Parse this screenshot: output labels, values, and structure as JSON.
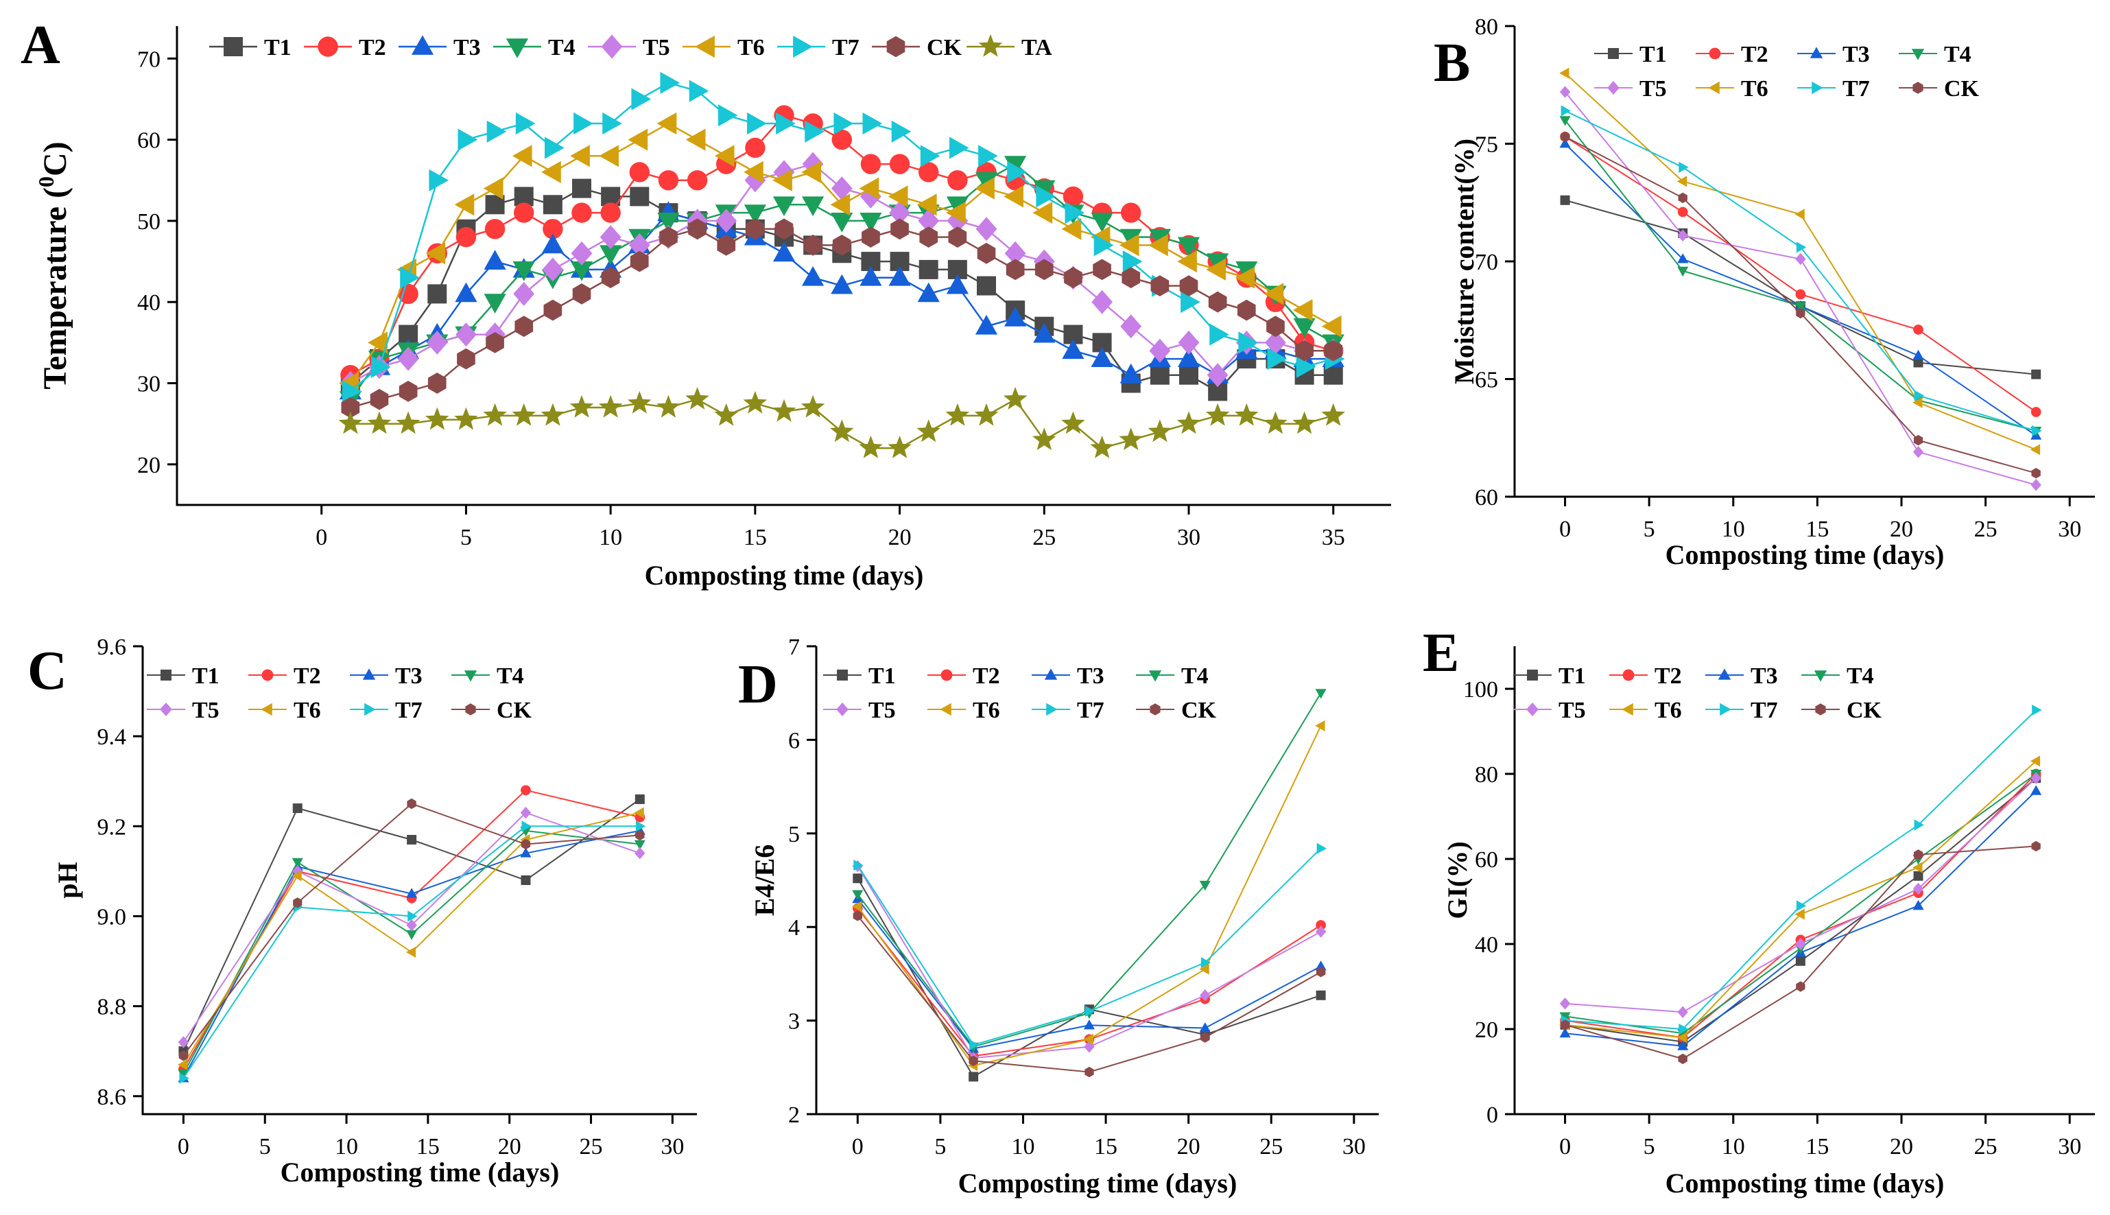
{
  "series_styles": {
    "T1": {
      "color": "#4a4a4a",
      "marker": "square"
    },
    "T2": {
      "color": "#ff3a3a",
      "marker": "circle"
    },
    "T3": {
      "color": "#1560d8",
      "marker": "triangle-up"
    },
    "T4": {
      "color": "#1b9e5a",
      "marker": "triangle-down"
    },
    "T5": {
      "color": "#c77ee6",
      "marker": "diamond"
    },
    "T6": {
      "color": "#d4a00e",
      "marker": "triangle-left"
    },
    "T7": {
      "color": "#19c6d6",
      "marker": "triangle-right"
    },
    "CK": {
      "color": "#8b4a4a",
      "marker": "hexagon"
    },
    "TA": {
      "color": "#8c8c1a",
      "marker": "star"
    }
  },
  "chart_data": [
    {
      "id": "A",
      "type": "line",
      "panel_label": "A",
      "title": "",
      "xlabel": "Composting time (days)",
      "ylabel": "Temperature (⁰C)",
      "ylabel_main": "Temperature (",
      "ylabel_sup": "0",
      "ylabel_end": "C)",
      "xlim": [
        -5,
        37
      ],
      "ylim": [
        15,
        74
      ],
      "xticks": [
        0,
        5,
        10,
        15,
        20,
        25,
        30,
        35
      ],
      "yticks": [
        20,
        30,
        40,
        50,
        60,
        70
      ],
      "legend": {
        "position": "top",
        "entries": [
          "T1",
          "T2",
          "T3",
          "T4",
          "T5",
          "T6",
          "T7",
          "CK",
          "TA"
        ]
      },
      "x": [
        1,
        2,
        3,
        4,
        5,
        6,
        7,
        8,
        9,
        10,
        11,
        12,
        13,
        14,
        15,
        16,
        17,
        18,
        19,
        20,
        21,
        22,
        23,
        24,
        25,
        26,
        27,
        28,
        29,
        30,
        31,
        32,
        33,
        34,
        35
      ],
      "series": [
        {
          "name": "T1",
          "values": [
            30,
            33,
            36,
            41,
            49,
            52,
            53,
            52,
            54,
            53,
            53,
            51,
            50,
            49,
            49,
            48,
            47,
            46,
            45,
            45,
            44,
            44,
            42,
            39,
            37,
            36,
            35,
            30,
            31,
            31,
            29,
            33,
            33,
            31,
            31
          ]
        },
        {
          "name": "T2",
          "values": [
            31,
            33,
            41,
            46,
            48,
            49,
            51,
            49,
            51,
            51,
            56,
            55,
            55,
            57,
            59,
            63,
            62,
            60,
            57,
            57,
            56,
            55,
            56,
            55,
            54,
            53,
            51,
            51,
            48,
            47,
            45,
            43,
            40,
            35,
            34
          ]
        },
        {
          "name": "T3",
          "values": [
            29,
            32,
            34,
            36,
            41,
            45,
            44,
            47,
            44,
            44,
            47,
            51,
            50,
            49,
            48,
            46,
            43,
            42,
            43,
            43,
            41,
            42,
            37,
            38,
            36,
            34,
            33,
            31,
            33,
            33,
            31,
            34,
            34,
            33,
            33
          ]
        },
        {
          "name": "T4",
          "values": [
            28,
            33,
            34,
            35,
            36,
            40,
            44,
            43,
            44,
            46,
            48,
            50,
            50,
            51,
            51,
            52,
            52,
            50,
            50,
            51,
            51,
            52,
            55,
            57,
            54,
            51,
            50,
            48,
            48,
            47,
            45,
            44,
            41,
            37,
            35
          ]
        },
        {
          "name": "T5",
          "values": [
            30,
            32,
            33,
            35,
            36,
            36,
            41,
            44,
            46,
            48,
            47,
            48,
            50,
            50,
            55,
            56,
            57,
            54,
            53,
            51,
            50,
            50,
            49,
            46,
            45,
            43,
            40,
            37,
            34,
            35,
            31,
            35,
            35,
            34,
            34
          ]
        },
        {
          "name": "T6",
          "values": [
            30,
            35,
            44,
            46,
            52,
            54,
            58,
            56,
            58,
            58,
            60,
            62,
            60,
            58,
            56,
            55,
            56,
            52,
            54,
            53,
            52,
            51,
            54,
            53,
            51,
            49,
            48,
            47,
            47,
            45,
            44,
            43,
            41,
            39,
            37
          ]
        },
        {
          "name": "T7",
          "values": [
            29,
            32,
            43,
            55,
            60,
            61,
            62,
            59,
            62,
            62,
            65,
            67,
            66,
            63,
            62,
            62,
            61,
            62,
            62,
            61,
            58,
            59,
            58,
            56,
            53,
            51,
            47,
            45,
            42,
            40,
            36,
            35,
            33,
            32,
            33
          ]
        },
        {
          "name": "CK",
          "values": [
            27,
            28,
            29,
            30,
            33,
            35,
            37,
            39,
            41,
            43,
            45,
            48,
            49,
            47,
            49,
            49,
            47,
            47,
            48,
            49,
            48,
            48,
            46,
            44,
            44,
            43,
            44,
            43,
            42,
            42,
            40,
            39,
            37,
            34,
            34
          ]
        },
        {
          "name": "TA",
          "values": [
            25,
            25,
            25,
            25.5,
            25.5,
            26,
            26,
            26,
            27,
            27,
            27.5,
            27,
            28,
            26,
            27.5,
            26.5,
            27,
            24,
            22,
            22,
            24,
            26,
            26,
            28,
            23,
            25,
            22,
            23,
            24,
            25,
            26,
            26,
            25,
            25,
            26
          ]
        }
      ]
    },
    {
      "id": "B",
      "type": "line",
      "panel_label": "B",
      "title": "",
      "xlabel": "Composting time (days)",
      "ylabel": "Moisture content(%)",
      "xlim": [
        -3,
        31.5
      ],
      "ylim": [
        60,
        80
      ],
      "xticks": [
        0,
        5,
        10,
        15,
        20,
        25,
        30
      ],
      "yticks": [
        60,
        65,
        70,
        75,
        80
      ],
      "legend": {
        "position": "top",
        "entries": [
          "T1",
          "T2",
          "T3",
          "T4",
          "T5",
          "T6",
          "T7",
          "CK"
        ]
      },
      "x": [
        0,
        7,
        14,
        21,
        28
      ],
      "series": [
        {
          "name": "T1",
          "values": [
            72.6,
            71.2,
            68.1,
            65.7,
            65.2
          ]
        },
        {
          "name": "T2",
          "values": [
            75.3,
            72.1,
            68.6,
            67.1,
            63.6
          ]
        },
        {
          "name": "T3",
          "values": [
            75.0,
            70.1,
            68.1,
            66.0,
            62.6
          ]
        },
        {
          "name": "T4",
          "values": [
            76.0,
            69.6,
            68.1,
            64.1,
            62.8
          ]
        },
        {
          "name": "T5",
          "values": [
            77.2,
            71.1,
            70.1,
            61.9,
            60.5
          ]
        },
        {
          "name": "T6",
          "values": [
            78.0,
            73.4,
            72.0,
            64.0,
            62.0
          ]
        },
        {
          "name": "T7",
          "values": [
            76.4,
            74.0,
            70.6,
            64.3,
            62.8
          ]
        },
        {
          "name": "CK",
          "values": [
            75.3,
            72.7,
            67.8,
            62.4,
            61.0
          ]
        }
      ]
    },
    {
      "id": "C",
      "type": "line",
      "panel_label": "C",
      "title": "",
      "xlabel": "Composting time (days)",
      "ylabel": "pH",
      "xlim": [
        -2.5,
        31.5
      ],
      "ylim": [
        8.56,
        9.6
      ],
      "xticks": [
        0,
        5,
        10,
        15,
        20,
        25,
        30
      ],
      "yticks": [
        8.6,
        8.8,
        9.0,
        9.2,
        9.4,
        9.6
      ],
      "ytick_labels": [
        "8.6",
        "8.8",
        "9.0",
        "9.2",
        "9.4",
        "9.6"
      ],
      "legend": {
        "position": "top",
        "entries": [
          "T1",
          "T2",
          "T3",
          "T4",
          "T5",
          "T6",
          "T7",
          "CK"
        ]
      },
      "x": [
        0,
        7,
        14,
        21,
        28
      ],
      "series": [
        {
          "name": "T1",
          "values": [
            8.7,
            9.24,
            9.17,
            9.08,
            9.26
          ]
        },
        {
          "name": "T2",
          "values": [
            8.66,
            9.1,
            9.04,
            9.28,
            9.22
          ]
        },
        {
          "name": "T3",
          "values": [
            8.64,
            9.11,
            9.05,
            9.14,
            9.19
          ]
        },
        {
          "name": "T4",
          "values": [
            8.65,
            9.12,
            8.96,
            9.19,
            9.16
          ]
        },
        {
          "name": "T5",
          "values": [
            8.72,
            9.1,
            8.98,
            9.23,
            9.14
          ]
        },
        {
          "name": "T6",
          "values": [
            8.67,
            9.09,
            8.92,
            9.17,
            9.23
          ]
        },
        {
          "name": "T7",
          "values": [
            8.64,
            9.02,
            9.0,
            9.2,
            9.2
          ]
        },
        {
          "name": "CK",
          "values": [
            8.69,
            9.03,
            9.25,
            9.16,
            9.18
          ]
        }
      ]
    },
    {
      "id": "D",
      "type": "line",
      "panel_label": "D",
      "title": "",
      "xlabel": "Composting time (days)",
      "ylabel": "E4/E6",
      "xlim": [
        -2.5,
        31.5
      ],
      "ylim": [
        2,
        7
      ],
      "xticks": [
        0,
        5,
        10,
        15,
        20,
        25,
        30
      ],
      "yticks": [
        2,
        3,
        4,
        5,
        6,
        7
      ],
      "legend": {
        "position": "top",
        "entries": [
          "T1",
          "T2",
          "T3",
          "T4",
          "T5",
          "T6",
          "T7",
          "CK"
        ]
      },
      "x": [
        0,
        7,
        14,
        21,
        28
      ],
      "series": [
        {
          "name": "T1",
          "values": [
            4.52,
            2.4,
            3.12,
            2.85,
            3.27
          ]
        },
        {
          "name": "T2",
          "values": [
            4.2,
            2.62,
            2.8,
            3.23,
            4.02
          ]
        },
        {
          "name": "T3",
          "values": [
            4.3,
            2.7,
            2.95,
            2.92,
            3.58
          ]
        },
        {
          "name": "T4",
          "values": [
            4.35,
            2.72,
            3.08,
            4.45,
            6.5
          ]
        },
        {
          "name": "T5",
          "values": [
            4.65,
            2.6,
            2.72,
            3.27,
            3.95
          ]
        },
        {
          "name": "T6",
          "values": [
            4.22,
            2.52,
            2.8,
            3.55,
            6.15
          ]
        },
        {
          "name": "T7",
          "values": [
            4.66,
            2.74,
            3.1,
            3.62,
            4.84
          ]
        },
        {
          "name": "CK",
          "values": [
            4.12,
            2.57,
            2.45,
            2.82,
            3.52
          ]
        }
      ]
    },
    {
      "id": "E",
      "type": "line",
      "panel_label": "E",
      "title": "",
      "xlabel": "Composting time (days)",
      "ylabel": "GI(%)",
      "xlim": [
        -3,
        31.5
      ],
      "ylim": [
        0,
        110
      ],
      "xticks": [
        0,
        5,
        10,
        15,
        20,
        25,
        30
      ],
      "yticks": [
        0,
        20,
        40,
        60,
        80,
        100
      ],
      "legend": {
        "position": "top",
        "entries": [
          "T1",
          "T2",
          "T3",
          "T4",
          "T5",
          "T6",
          "T7",
          "CK"
        ]
      },
      "x": [
        0,
        7,
        14,
        21,
        28
      ],
      "series": [
        {
          "name": "T1",
          "values": [
            21,
            17,
            36,
            56,
            79
          ]
        },
        {
          "name": "T2",
          "values": [
            22,
            18,
            41,
            52,
            80
          ]
        },
        {
          "name": "T3",
          "values": [
            19,
            16,
            38,
            49,
            76
          ]
        },
        {
          "name": "T4",
          "values": [
            23,
            19,
            39,
            60,
            80
          ]
        },
        {
          "name": "T5",
          "values": [
            26,
            24,
            40,
            53,
            79
          ]
        },
        {
          "name": "T6",
          "values": [
            21,
            18,
            47,
            58,
            83
          ]
        },
        {
          "name": "T7",
          "values": [
            22,
            20,
            49,
            68,
            95
          ]
        },
        {
          "name": "CK",
          "values": [
            21,
            13,
            30,
            61,
            63
          ]
        }
      ]
    }
  ]
}
